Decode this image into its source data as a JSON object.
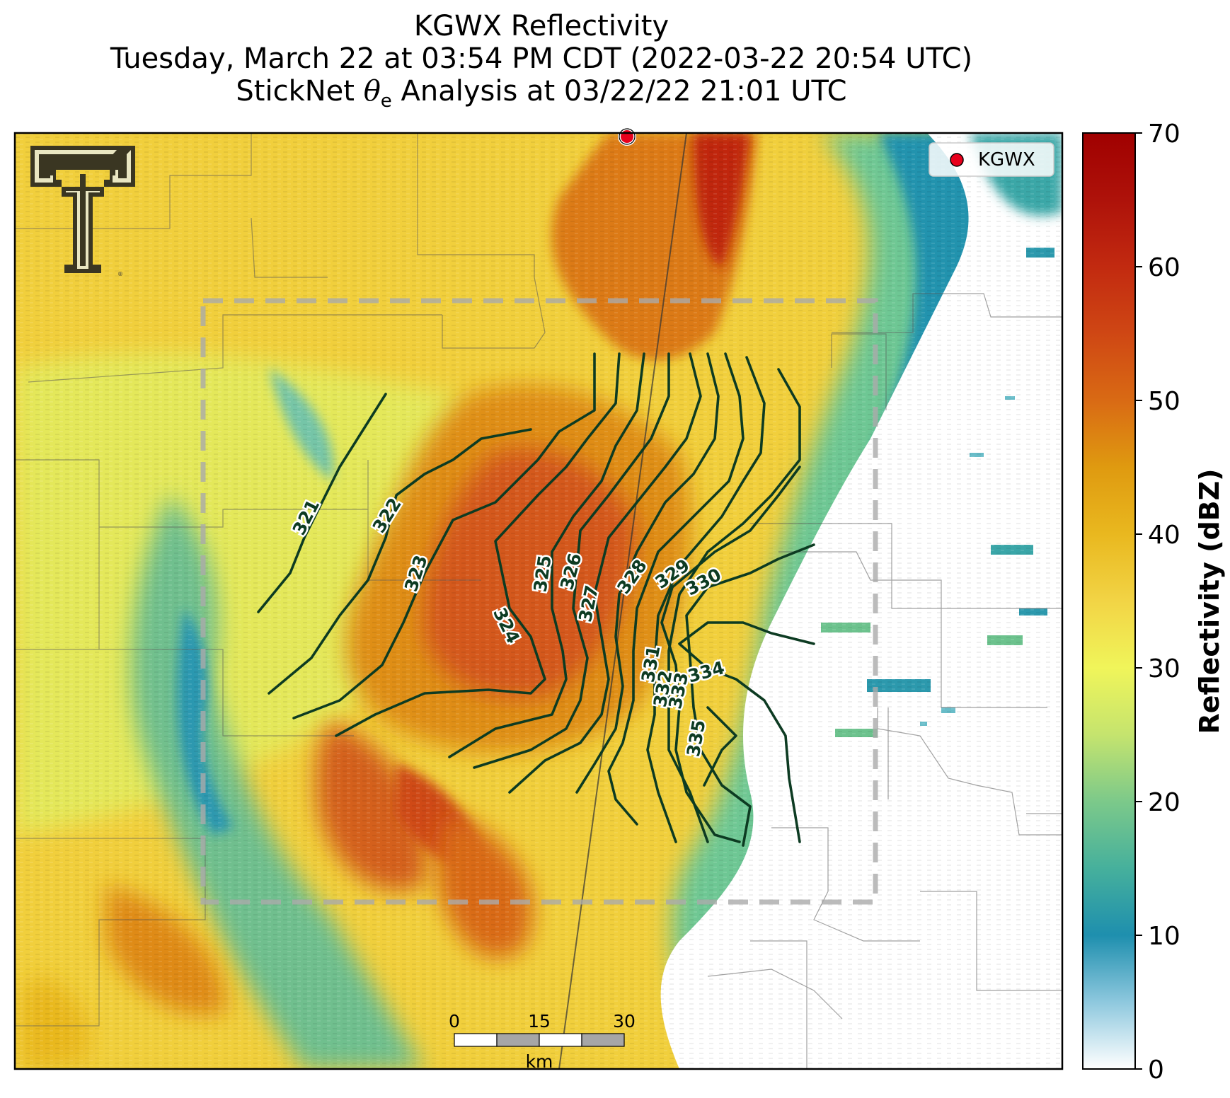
{
  "title": {
    "line1": "KGWX Reflectivity",
    "line2": "Tuesday, March 22 at 03:54 PM CDT (2022-03-22 20:54 UTC)",
    "line3_prefix": "StickNet ",
    "line3_symbol": "θ",
    "line3_subscript": "e",
    "line3_suffix": " Analysis at 03/22/22 21:01 UTC"
  },
  "legend": {
    "marker_label": "KGWX",
    "marker_color": "#e8001c"
  },
  "colorbar": {
    "label": "Reflectivity (dBZ)",
    "ticks": [
      "0",
      "10",
      "20",
      "30",
      "40",
      "50",
      "60",
      "70"
    ],
    "range": [
      0,
      70
    ],
    "stops": [
      {
        "v": 0,
        "c": "#ffffff"
      },
      {
        "v": 5,
        "c": "#8ec8de"
      },
      {
        "v": 10,
        "c": "#1e8fae"
      },
      {
        "v": 15,
        "c": "#46b09c"
      },
      {
        "v": 20,
        "c": "#7cc98a"
      },
      {
        "v": 25,
        "c": "#c5e46e"
      },
      {
        "v": 30,
        "c": "#f0f55a"
      },
      {
        "v": 35,
        "c": "#f2d445"
      },
      {
        "v": 40,
        "c": "#e9b81f"
      },
      {
        "v": 45,
        "c": "#df9a10"
      },
      {
        "v": 50,
        "c": "#d96a14"
      },
      {
        "v": 55,
        "c": "#cf4714"
      },
      {
        "v": 60,
        "c": "#c22a10"
      },
      {
        "v": 65,
        "c": "#ae120a"
      },
      {
        "v": 70,
        "c": "#a00000"
      }
    ]
  },
  "scale_bar": {
    "ticks": [
      "0",
      "15",
      "30"
    ],
    "unit": "km"
  },
  "contour_labels": [
    "321",
    "322",
    "323",
    "324",
    "325",
    "326",
    "327",
    "328",
    "329",
    "330",
    "331",
    "332",
    "333",
    "334",
    "335"
  ],
  "logo": {
    "name": "texas-tech-double-t-logo",
    "registered": "®"
  }
}
